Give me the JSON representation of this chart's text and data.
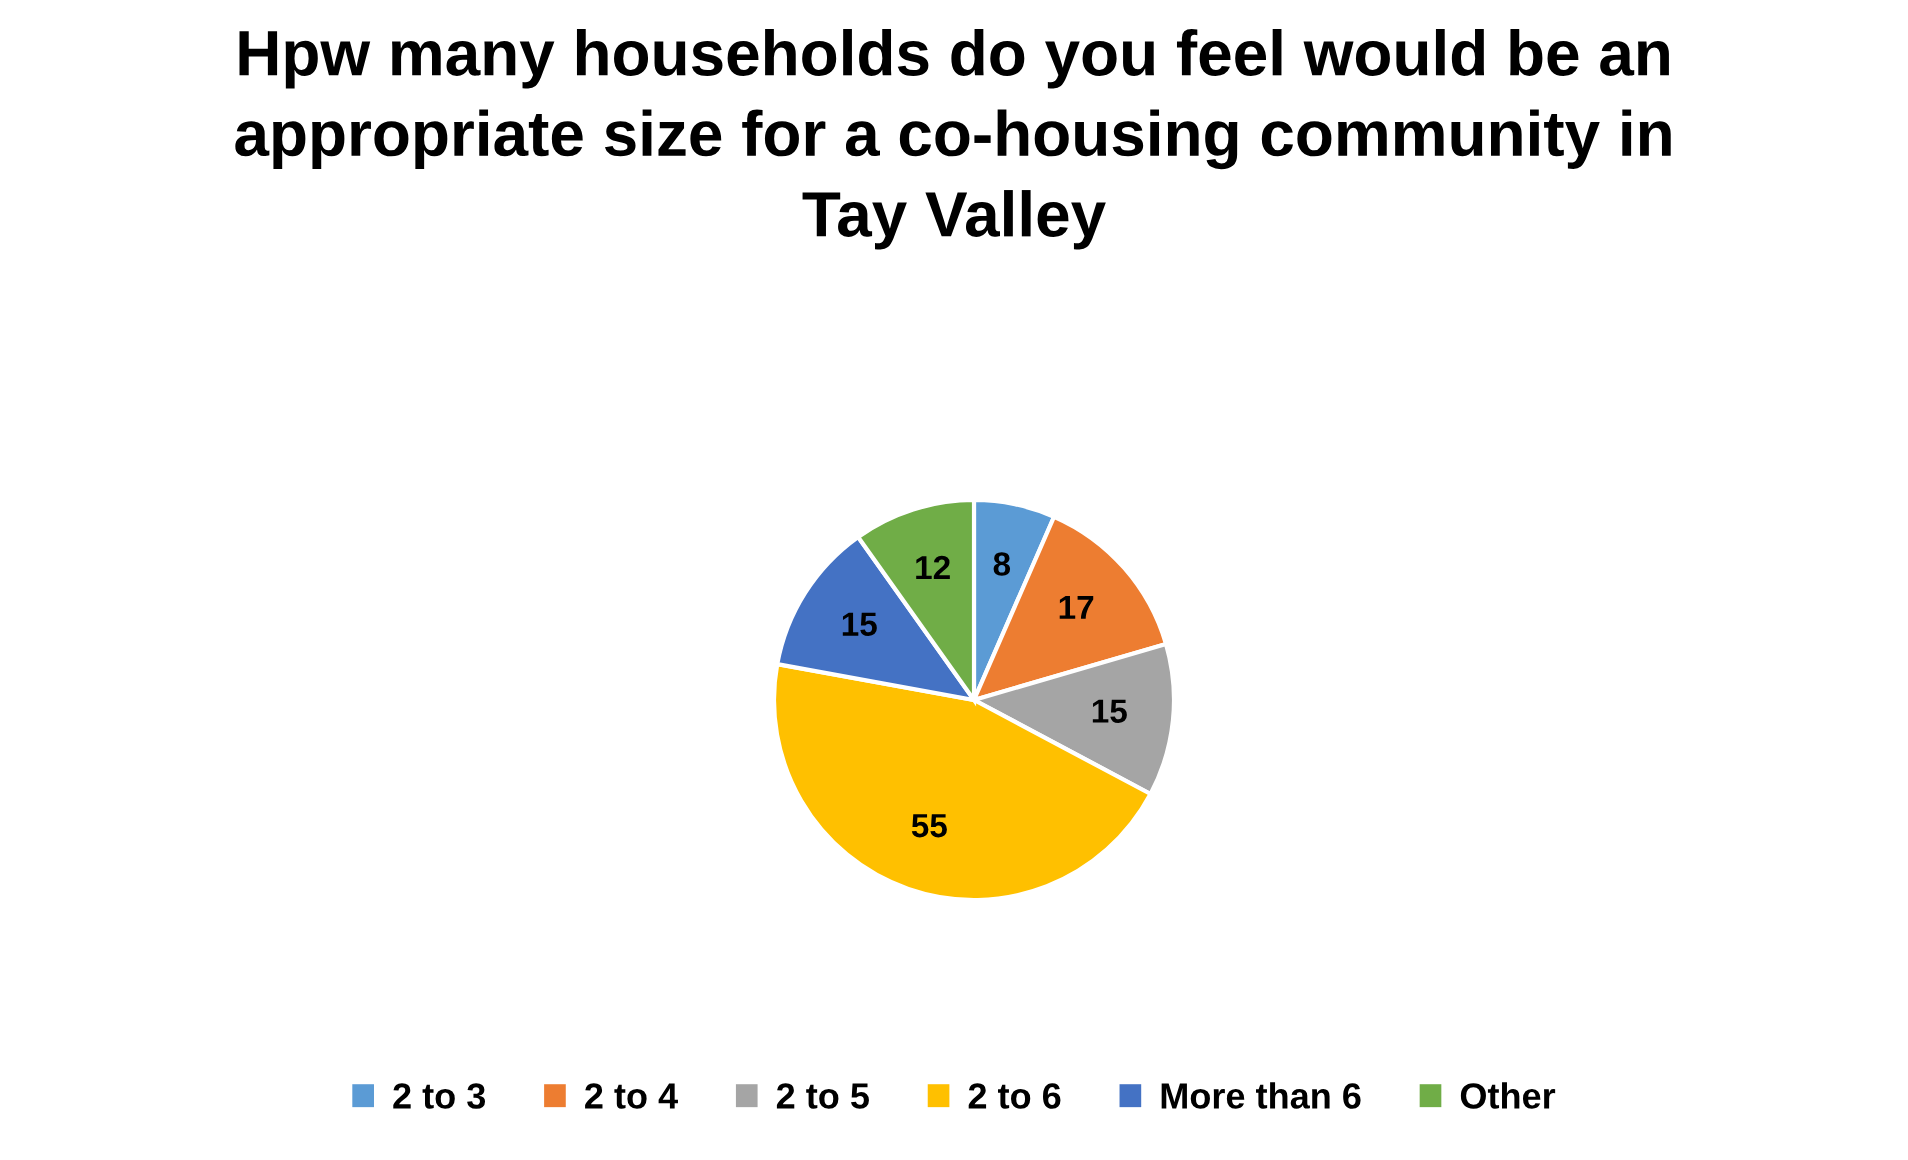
{
  "chart_data": {
    "type": "pie",
    "title": "Hpw many households do you feel would be an appropriate size for a co-housing community in Tay Valley",
    "categories": [
      "2 to 3",
      "2 to 4",
      "2 to 5",
      "2 to 6",
      "More than 6",
      "Other"
    ],
    "values": [
      8,
      17,
      15,
      55,
      15,
      12
    ],
    "colors": [
      "#5b9bd5",
      "#ed7d31",
      "#a5a5a5",
      "#ffc000",
      "#4472c4",
      "#70ad47"
    ],
    "data_labels": true,
    "legend": "bottom"
  }
}
